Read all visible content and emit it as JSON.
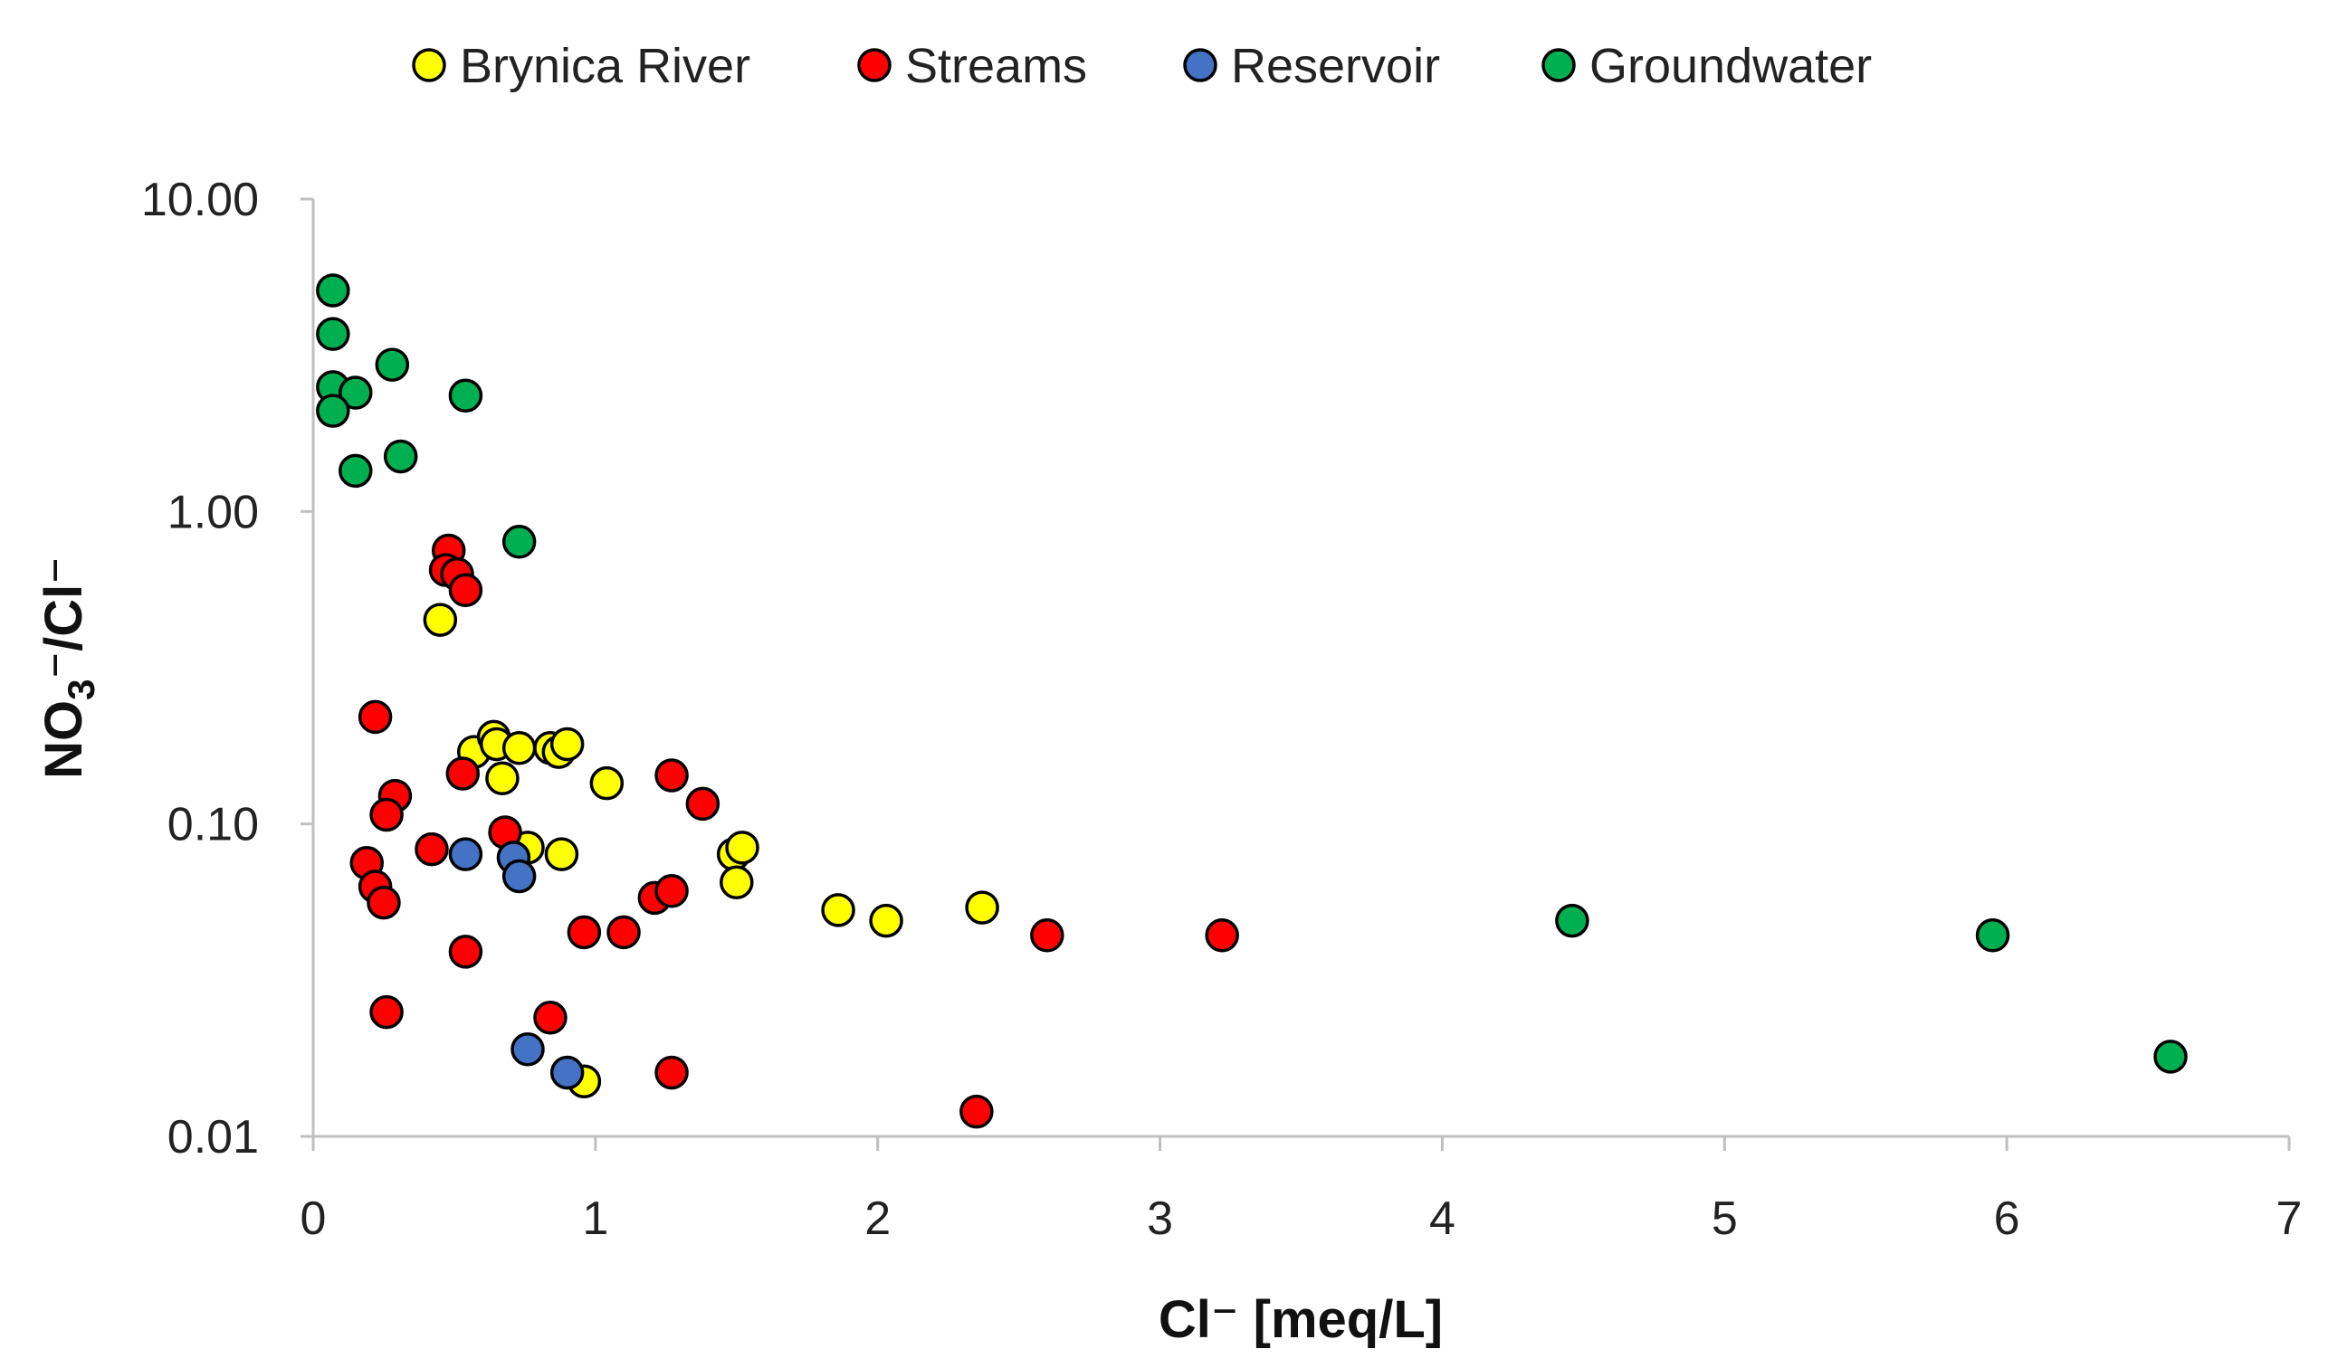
{
  "chart_data": {
    "type": "scatter",
    "title": "",
    "xlabel": "Cl⁻ [meq/L]",
    "ylabel_main": "NO",
    "ylabel_sub": "3",
    "ylabel_rest": "⁻/Cl⁻",
    "xlim": [
      0,
      7
    ],
    "ylim": [
      0.01,
      10
    ],
    "yscale": "log",
    "grid": false,
    "legend_position": "top",
    "x_ticks": [
      0,
      1,
      2,
      3,
      4,
      5,
      6,
      7
    ],
    "x_tick_labels": [
      "0",
      "1",
      "2",
      "3",
      "4",
      "5",
      "6",
      "7"
    ],
    "y_ticks": [
      0.01,
      0.1,
      1,
      10
    ],
    "y_tick_labels": [
      "0.01",
      "0.10",
      "1.00",
      "10.00"
    ],
    "series": [
      {
        "name": "Brynica River",
        "color": "#ffff00",
        "points": [
          [
            0.45,
            0.45
          ],
          [
            0.57,
            0.17
          ],
          [
            0.64,
            0.19
          ],
          [
            0.65,
            0.18
          ],
          [
            0.67,
            0.14
          ],
          [
            0.73,
            0.175
          ],
          [
            0.76,
            0.084
          ],
          [
            0.84,
            0.175
          ],
          [
            0.87,
            0.17
          ],
          [
            0.9,
            0.18
          ],
          [
            0.88,
            0.08
          ],
          [
            0.96,
            0.015
          ],
          [
            1.04,
            0.135
          ],
          [
            1.49,
            0.08
          ],
          [
            1.5,
            0.065
          ],
          [
            1.52,
            0.084
          ],
          [
            1.86,
            0.053
          ],
          [
            2.03,
            0.049
          ],
          [
            2.37,
            0.054
          ]
        ]
      },
      {
        "name": "Streams",
        "color": "#ff0000",
        "points": [
          [
            0.48,
            0.75
          ],
          [
            0.47,
            0.65
          ],
          [
            0.51,
            0.63
          ],
          [
            0.54,
            0.56
          ],
          [
            0.22,
            0.22
          ],
          [
            0.29,
            0.123
          ],
          [
            0.26,
            0.107
          ],
          [
            0.53,
            0.145
          ],
          [
            0.68,
            0.094
          ],
          [
            0.42,
            0.083
          ],
          [
            0.19,
            0.075
          ],
          [
            0.22,
            0.063
          ],
          [
            0.25,
            0.056
          ],
          [
            0.54,
            0.039
          ],
          [
            0.26,
            0.025
          ],
          [
            0.84,
            0.024
          ],
          [
            0.96,
            0.045
          ],
          [
            1.1,
            0.045
          ],
          [
            1.21,
            0.058
          ],
          [
            1.27,
            0.061
          ],
          [
            1.27,
            0.143
          ],
          [
            1.38,
            0.116
          ],
          [
            1.27,
            0.016
          ],
          [
            2.35,
            0.012
          ],
          [
            2.6,
            0.044
          ],
          [
            3.22,
            0.044
          ]
        ]
      },
      {
        "name": "Reservoir",
        "color": "#4472c4",
        "points": [
          [
            0.54,
            0.08
          ],
          [
            0.71,
            0.078
          ],
          [
            0.73,
            0.068
          ],
          [
            0.76,
            0.019
          ],
          [
            0.9,
            0.016
          ]
        ]
      },
      {
        "name": "Groundwater",
        "color": "#00b050",
        "points": [
          [
            0.07,
            5.1
          ],
          [
            0.07,
            3.7
          ],
          [
            0.28,
            2.95
          ],
          [
            0.07,
            2.5
          ],
          [
            0.15,
            2.4
          ],
          [
            0.07,
            2.1
          ],
          [
            0.54,
            2.35
          ],
          [
            0.31,
            1.5
          ],
          [
            0.15,
            1.35
          ],
          [
            0.73,
            0.8
          ],
          [
            4.46,
            0.049
          ],
          [
            5.95,
            0.044
          ],
          [
            6.58,
            0.018
          ]
        ]
      }
    ]
  }
}
